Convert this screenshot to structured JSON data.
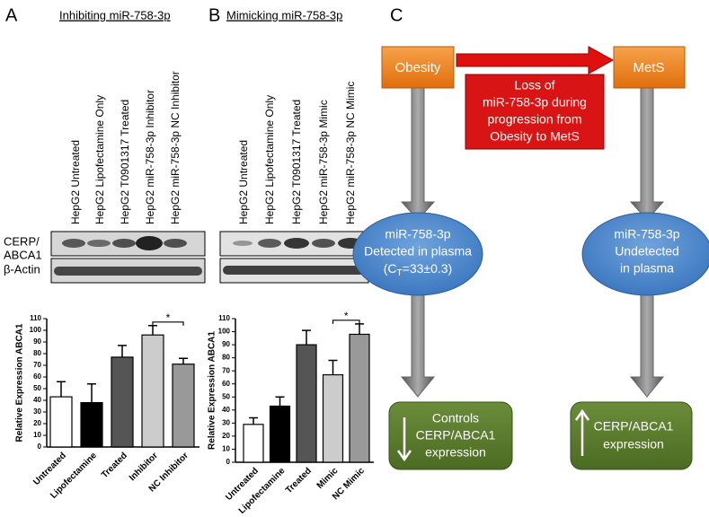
{
  "panels": [
    "A",
    "B",
    "C"
  ],
  "blots": [
    {
      "title": "Inhibiting miR-758-3p",
      "lanes": [
        "HepG2 Untreated",
        "HepG2 Lipofectamine Only",
        "HepG2 T0901317 Treated",
        "HepG2 miR-758-3p Inhibitor",
        "HepG2 miR-758-3p NC Inhibitor"
      ]
    },
    {
      "title": "Mimicking miR-758-3p",
      "lanes": [
        "HepG2 Untreated",
        "HepG2 Lipofectamine Only",
        "HepG2 T0901317 Treated",
        "HepG2 miR-758-3p Mimic",
        "HepG2 miR-758-3p NC Mimic"
      ]
    }
  ],
  "blot_labels": [
    "CERP/",
    "ABCA1",
    "β-Actin"
  ],
  "chart_data": [
    {
      "type": "bar",
      "y_label": "Relative Expression ABCA1",
      "categories": [
        "Untreated",
        "Lipofectamine",
        "Treated",
        "Inhibitor",
        "NC Inhibitor"
      ],
      "values": [
        43,
        38,
        77,
        96,
        71
      ],
      "errors": [
        13,
        16,
        10,
        8,
        5
      ],
      "colors": [
        "#ffffff",
        "#000000",
        "#555555",
        "#cccccc",
        "#999999"
      ],
      "ylim": [
        0,
        110
      ],
      "yticks": [
        0,
        10,
        20,
        30,
        40,
        50,
        60,
        70,
        80,
        90,
        100,
        110
      ],
      "significance": {
        "label": "*",
        "from": "Inhibitor",
        "to": "NC Inhibitor"
      }
    },
    {
      "type": "bar",
      "y_label": "Relative Expression ABCA1",
      "categories": [
        "Untreated",
        "Lipofectamine",
        "Treated",
        "Mimic",
        "NC Mimic"
      ],
      "values": [
        29,
        43,
        90,
        67,
        98
      ],
      "errors": [
        5,
        7,
        11,
        11,
        8
      ],
      "colors": [
        "#ffffff",
        "#000000",
        "#555555",
        "#cccccc",
        "#999999"
      ],
      "ylim": [
        0,
        110
      ],
      "yticks": [
        0,
        10,
        20,
        30,
        40,
        50,
        60,
        70,
        80,
        90,
        100,
        110
      ],
      "significance": {
        "label": "*",
        "from": "Mimic",
        "to": "NC Mimic"
      }
    }
  ],
  "diagram": {
    "start": "Obesity",
    "end": "MetS",
    "loss": [
      "Loss of",
      "miR-758-3p during",
      "progression from",
      "Obesity to MetS"
    ],
    "left_ellipse": {
      "lines": [
        "miR-758-3p",
        "Detected in plasma"
      ],
      "ct": [
        "(C",
        "T",
        "=33±0.3)"
      ]
    },
    "right_ellipse": [
      "miR-758-3p",
      "Undetected",
      "in plasma"
    ],
    "left_result": [
      "Controls",
      "CERP/ABCA1",
      "expression"
    ],
    "right_result": [
      "CERP/ABCA1",
      "expression"
    ]
  }
}
